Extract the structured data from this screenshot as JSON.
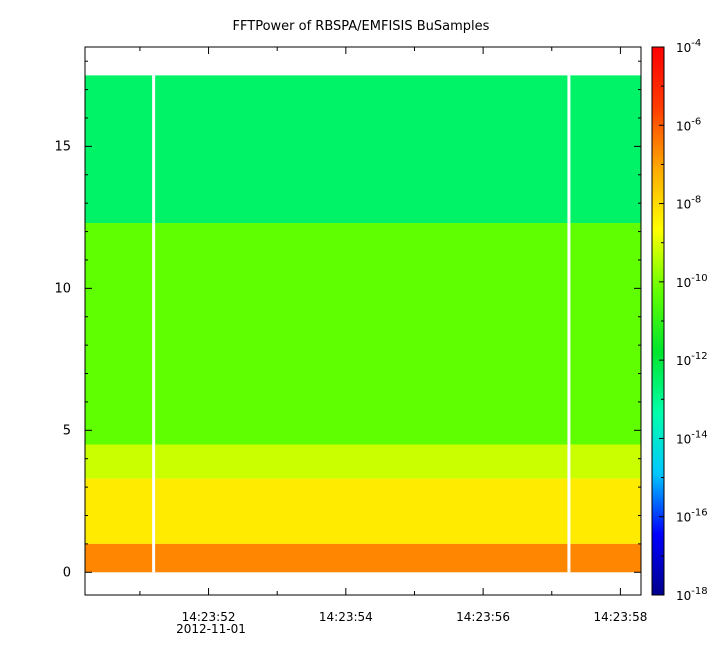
{
  "chart_data": {
    "type": "heatmap",
    "title": "FFTPower of RBSPA/EMFISIS  BuSamples",
    "xlabel": "",
    "ylabel": "",
    "x_ticks": [
      "14:23:52",
      "14:23:54",
      "14:23:56",
      "14:23:58"
    ],
    "x_tick_seconds": [
      52,
      54,
      56,
      58
    ],
    "x_range_seconds": [
      50.2,
      58.3
    ],
    "x_date_label": "2012-11-01",
    "y_ticks": [
      0,
      5,
      10,
      15
    ],
    "ylim": [
      -0.8,
      18.5
    ],
    "data_ylim": [
      0,
      17.5
    ],
    "gap_seconds": [
      51.2,
      57.25
    ],
    "colorbar": {
      "scale": "log",
      "range_exp": [
        -18,
        -4
      ],
      "tick_exponents": [
        -4,
        -6,
        -8,
        -10,
        -12,
        -14,
        -16,
        -18
      ],
      "tick_base": "10",
      "colormap": [
        "#00008c",
        "#0000ff",
        "#00c8ff",
        "#00ffaa",
        "#00e62d",
        "#64ff00",
        "#ffff00",
        "#ffaa00",
        "#ff3c00",
        "#ff0000"
      ]
    },
    "bands": [
      {
        "y_from": 12.3,
        "y_to": 17.5,
        "log_power": -12.5
      },
      {
        "y_from": 4.5,
        "y_to": 12.3,
        "log_power": -10.3
      },
      {
        "y_from": 3.3,
        "y_to": 4.5,
        "log_power": -9.2
      },
      {
        "y_from": 1.0,
        "y_to": 3.3,
        "log_power": -8.3
      },
      {
        "y_from": 0.0,
        "y_to": 1.0,
        "log_power": -6.6
      }
    ]
  }
}
